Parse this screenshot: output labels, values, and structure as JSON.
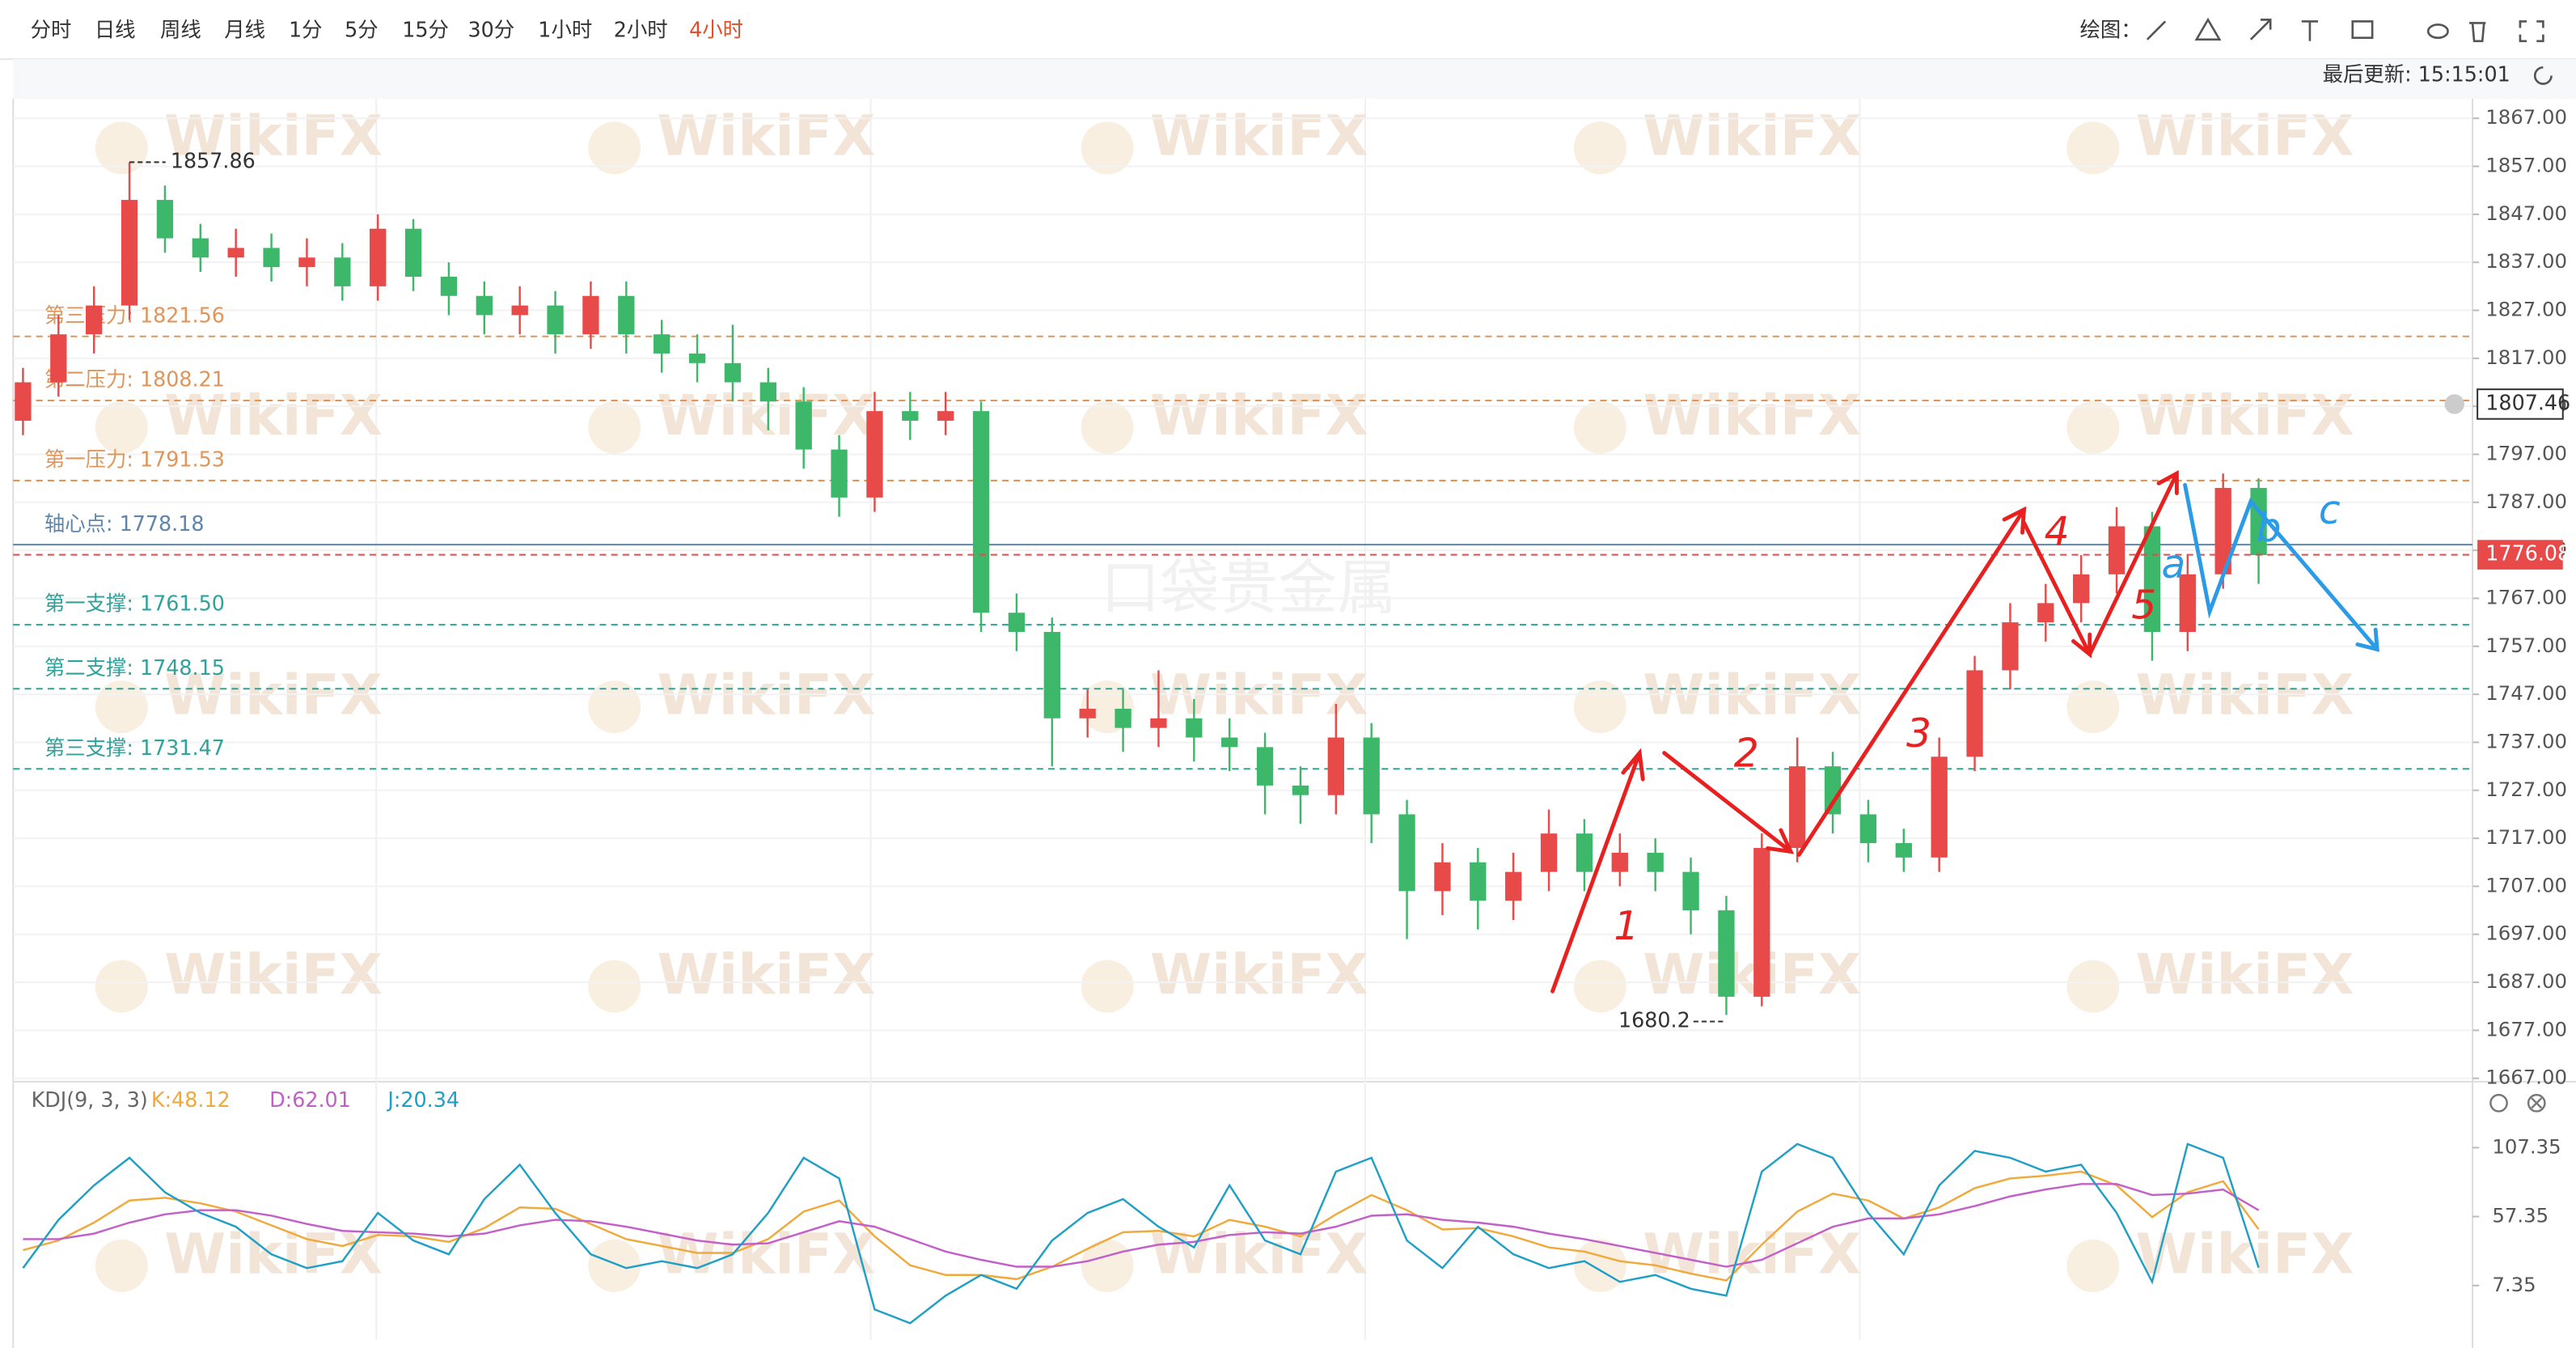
{
  "toolbar": {
    "timeframes": [
      "分时",
      "日线",
      "周线",
      "月线",
      "1分",
      "5分",
      "15分",
      "30分",
      "1小时",
      "2小时",
      "4小时"
    ],
    "active": "4小时",
    "draw_label": "绘图："
  },
  "status": {
    "last_update": "最后更新: 15:15:01"
  },
  "watermark": "WikiFX",
  "center_watermark": "口袋贵金属",
  "annotations": [
    "1",
    "2",
    "3",
    "4",
    "5",
    "a",
    "b",
    "c"
  ],
  "chart_data": [
    {
      "type": "candlestick",
      "up_color": "#e84a4a",
      "down_color": "#3db86a",
      "ylim": [
        1666.3,
        1871.1
      ],
      "yticks": [
        {
          "value": 1867,
          "label": "1867.00"
        },
        {
          "value": 1857,
          "label": "1857.00"
        },
        {
          "value": 1847,
          "label": "1847.00"
        },
        {
          "value": 1837,
          "label": "1837.00"
        },
        {
          "value": 1827,
          "label": "1827.00"
        },
        {
          "value": 1817,
          "label": "1817.00"
        },
        {
          "value": 1807,
          "label": "1807.00"
        },
        {
          "value": 1797,
          "label": "1797.00"
        },
        {
          "value": 1787,
          "label": "1787.00"
        },
        {
          "value": 1777,
          "label": "1777.00"
        },
        {
          "value": 1767,
          "label": "1767.00"
        },
        {
          "value": 1757,
          "label": "1757.00"
        },
        {
          "value": 1747,
          "label": "1747.00"
        },
        {
          "value": 1737,
          "label": "1737.00"
        },
        {
          "value": 1727,
          "label": "1727.00"
        },
        {
          "value": 1717,
          "label": "1717.00"
        },
        {
          "value": 1707,
          "label": "1707.00"
        },
        {
          "value": 1697,
          "label": "1697.00"
        },
        {
          "value": 1687,
          "label": "1687.00"
        },
        {
          "value": 1677,
          "label": "1677.00"
        },
        {
          "value": 1667,
          "label": "1667.00"
        }
      ],
      "open": [
        1804,
        1812,
        1822,
        1828,
        1850,
        1842,
        1838,
        1840,
        1836,
        1838,
        1832,
        1844,
        1834,
        1830,
        1826,
        1828,
        1822,
        1830,
        1822,
        1818,
        1816,
        1812,
        1808,
        1798,
        1788,
        1806,
        1804,
        1806,
        1764,
        1760,
        1742,
        1744,
        1740,
        1742,
        1738,
        1736,
        1728,
        1726,
        1738,
        1722,
        1706,
        1712,
        1704,
        1710,
        1718,
        1710,
        1714,
        1710,
        1702,
        1684,
        1715,
        1732,
        1722,
        1716,
        1713,
        1734,
        1752,
        1762,
        1766,
        1772,
        1782,
        1760,
        1772,
        1790
      ],
      "high": [
        1815,
        1826,
        1832,
        1857.86,
        1853,
        1845,
        1844,
        1843,
        1842,
        1841,
        1847,
        1846,
        1837,
        1833,
        1832,
        1831,
        1833,
        1833,
        1825,
        1822,
        1824,
        1815,
        1811,
        1801,
        1810,
        1810,
        1810,
        1808,
        1768,
        1763,
        1748,
        1748,
        1752,
        1746,
        1742,
        1739,
        1732,
        1745,
        1741,
        1725,
        1716,
        1715,
        1714,
        1723,
        1721,
        1718,
        1717,
        1713,
        1705,
        1718,
        1738,
        1735,
        1725,
        1719,
        1738,
        1755,
        1766,
        1770,
        1776,
        1786,
        1785,
        1776,
        1793,
        1792
      ],
      "low": [
        1801,
        1809,
        1818,
        1825,
        1839,
        1835,
        1834,
        1833,
        1832,
        1829,
        1829,
        1831,
        1826,
        1822,
        1822,
        1818,
        1819,
        1818,
        1814,
        1812,
        1808,
        1802,
        1794,
        1784,
        1785,
        1800,
        1801,
        1760,
        1756,
        1732,
        1738,
        1735,
        1736,
        1733,
        1731,
        1722,
        1720,
        1722,
        1716,
        1696,
        1701,
        1698,
        1700,
        1706,
        1706,
        1707,
        1706,
        1697,
        1680.2,
        1682,
        1712,
        1718,
        1712,
        1710,
        1710,
        1731,
        1748,
        1758,
        1762,
        1768,
        1754,
        1756,
        1769,
        1770
      ],
      "close": [
        1812,
        1822,
        1828,
        1850,
        1842,
        1838,
        1840,
        1836,
        1838,
        1832,
        1844,
        1834,
        1830,
        1826,
        1828,
        1822,
        1830,
        1822,
        1818,
        1816,
        1812,
        1808,
        1798,
        1788,
        1806,
        1804,
        1806,
        1764,
        1760,
        1742,
        1744,
        1740,
        1742,
        1738,
        1736,
        1728,
        1726,
        1738,
        1722,
        1706,
        1712,
        1704,
        1710,
        1718,
        1710,
        1714,
        1710,
        1702,
        1684,
        1715,
        1732,
        1722,
        1716,
        1713,
        1734,
        1752,
        1762,
        1766,
        1772,
        1782,
        1760,
        1772,
        1790,
        1776
      ],
      "max_label": 1857.86,
      "min_label": 1680.2,
      "levels": [
        {
          "label": "第三压力: 1821.56",
          "value": 1821.56,
          "color": "#e0965a",
          "style": "dashed"
        },
        {
          "label": "第二压力: 1808.21",
          "value": 1808.21,
          "color": "#e0965a",
          "style": "dashed"
        },
        {
          "label": "第一压力: 1791.53",
          "value": 1791.53,
          "color": "#e0965a",
          "style": "dashed"
        },
        {
          "label": "轴心点: 1778.18",
          "value": 1778.18,
          "color": "#5f86aa",
          "style": "solid"
        },
        {
          "label": "第一支撑: 1761.50",
          "value": 1761.5,
          "color": "#2fa39b",
          "style": "dashed"
        },
        {
          "label": "第二支撑: 1748.15",
          "value": 1748.15,
          "color": "#2fa39b",
          "style": "dashed"
        },
        {
          "label": "第三支撑: 1731.47",
          "value": 1731.47,
          "color": "#2fa39b",
          "style": "dashed"
        }
      ],
      "alert_price": 1807.46,
      "last_price": 1776.08,
      "last_color": "#e84a4a"
    },
    {
      "type": "line",
      "title": "KDJ(9, 3, 3)",
      "ylim": [
        -32,
        123
      ],
      "yticks": [
        7.35,
        57.35,
        107.35
      ],
      "series": [
        {
          "name": "K",
          "legend_label": "K:48.12",
          "color": "#f0a93a",
          "values": [
            33,
            40,
            53,
            69,
            71,
            67,
            61,
            51,
            41,
            36,
            44,
            43,
            39,
            49,
            64,
            63,
            52,
            41,
            36,
            31,
            31,
            41,
            61,
            69,
            43,
            22,
            15,
            15,
            12,
            21,
            34,
            46,
            47,
            43,
            55,
            50,
            43,
            59,
            73,
            62,
            48,
            49,
            43,
            35,
            32,
            25,
            22,
            16,
            11,
            37,
            61,
            74,
            69,
            56,
            64,
            78,
            85,
            87,
            90,
            80,
            57,
            75,
            83,
            48.12
          ]
        },
        {
          "name": "D",
          "legend_label": "D:62.01",
          "color": "#c35fc9",
          "values": [
            41,
            41,
            45,
            53,
            59,
            62,
            62,
            58,
            52,
            47,
            46,
            45,
            43,
            45,
            51,
            55,
            54,
            50,
            45,
            40,
            37,
            38,
            46,
            54,
            50,
            41,
            32,
            26,
            21,
            21,
            25,
            32,
            37,
            39,
            44,
            46,
            45,
            50,
            58,
            59,
            55,
            53,
            50,
            45,
            41,
            36,
            31,
            26,
            21,
            26,
            38,
            50,
            56,
            56,
            59,
            65,
            72,
            77,
            81,
            81,
            73,
            74,
            77,
            62.01
          ]
        },
        {
          "name": "J",
          "legend_label": "J:20.34",
          "color": "#1f9fc6",
          "values": [
            20,
            55,
            80,
            100,
            75,
            60,
            50,
            30,
            20,
            25,
            60,
            40,
            30,
            70,
            95,
            60,
            30,
            20,
            25,
            20,
            30,
            60,
            100,
            85,
            -10,
            -20,
            0,
            15,
            5,
            40,
            60,
            70,
            50,
            35,
            80,
            40,
            30,
            90,
            100,
            40,
            20,
            50,
            30,
            20,
            25,
            10,
            15,
            5,
            0,
            90,
            110,
            100,
            60,
            30,
            80,
            105,
            100,
            90,
            95,
            60,
            10,
            110,
            100,
            20.34
          ]
        }
      ]
    }
  ]
}
